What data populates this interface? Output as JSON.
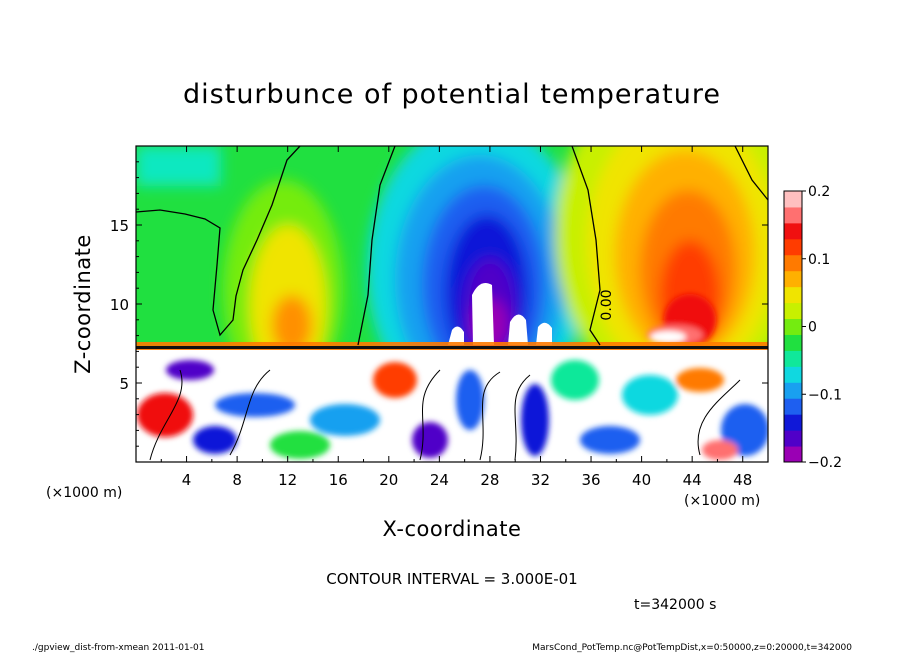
{
  "chart_data": {
    "type": "heatmap",
    "title": "disturbunce of potential temperature",
    "xlabel": "X-coordinate",
    "ylabel": "Z-coordinate",
    "x_unit": "(×1000 m)",
    "y_unit": "(×1000 m)",
    "xlim": [
      0,
      50
    ],
    "ylim": [
      0,
      20
    ],
    "x_ticks": [
      4,
      8,
      12,
      16,
      20,
      24,
      28,
      32,
      36,
      40,
      44,
      48
    ],
    "y_ticks": [
      5,
      10,
      15
    ],
    "colorbar": {
      "range": [
        -0.2,
        0.2
      ],
      "tick_values": [
        0.2,
        0.1,
        0,
        -0.1,
        -0.2
      ],
      "tick_labels": [
        "0.2",
        "0.1",
        "0",
        "−0.1",
        "−0.2"
      ],
      "colors": [
        "#9a00b4",
        "#5000c8",
        "#1018d8",
        "#1e5ff0",
        "#19a0f0",
        "#10d8e0",
        "#10e89a",
        "#20e040",
        "#74ec10",
        "#c8f000",
        "#f0e400",
        "#ffb000",
        "#ff7a00",
        "#ff3c00",
        "#f01010",
        "#ff7070",
        "#ffc0c0"
      ]
    },
    "contour_label": "0.00",
    "contour_interval_text": "CONTOUR INTERVAL = 3.000E-01",
    "time_text": "t=342000 s"
  },
  "footer": {
    "left": "./gpview_dist-from-xmean  2011-01-01",
    "right": "MarsCond_PotTemp.nc@PotTempDist,x=0:50000,z=0:20000,t=342000"
  }
}
